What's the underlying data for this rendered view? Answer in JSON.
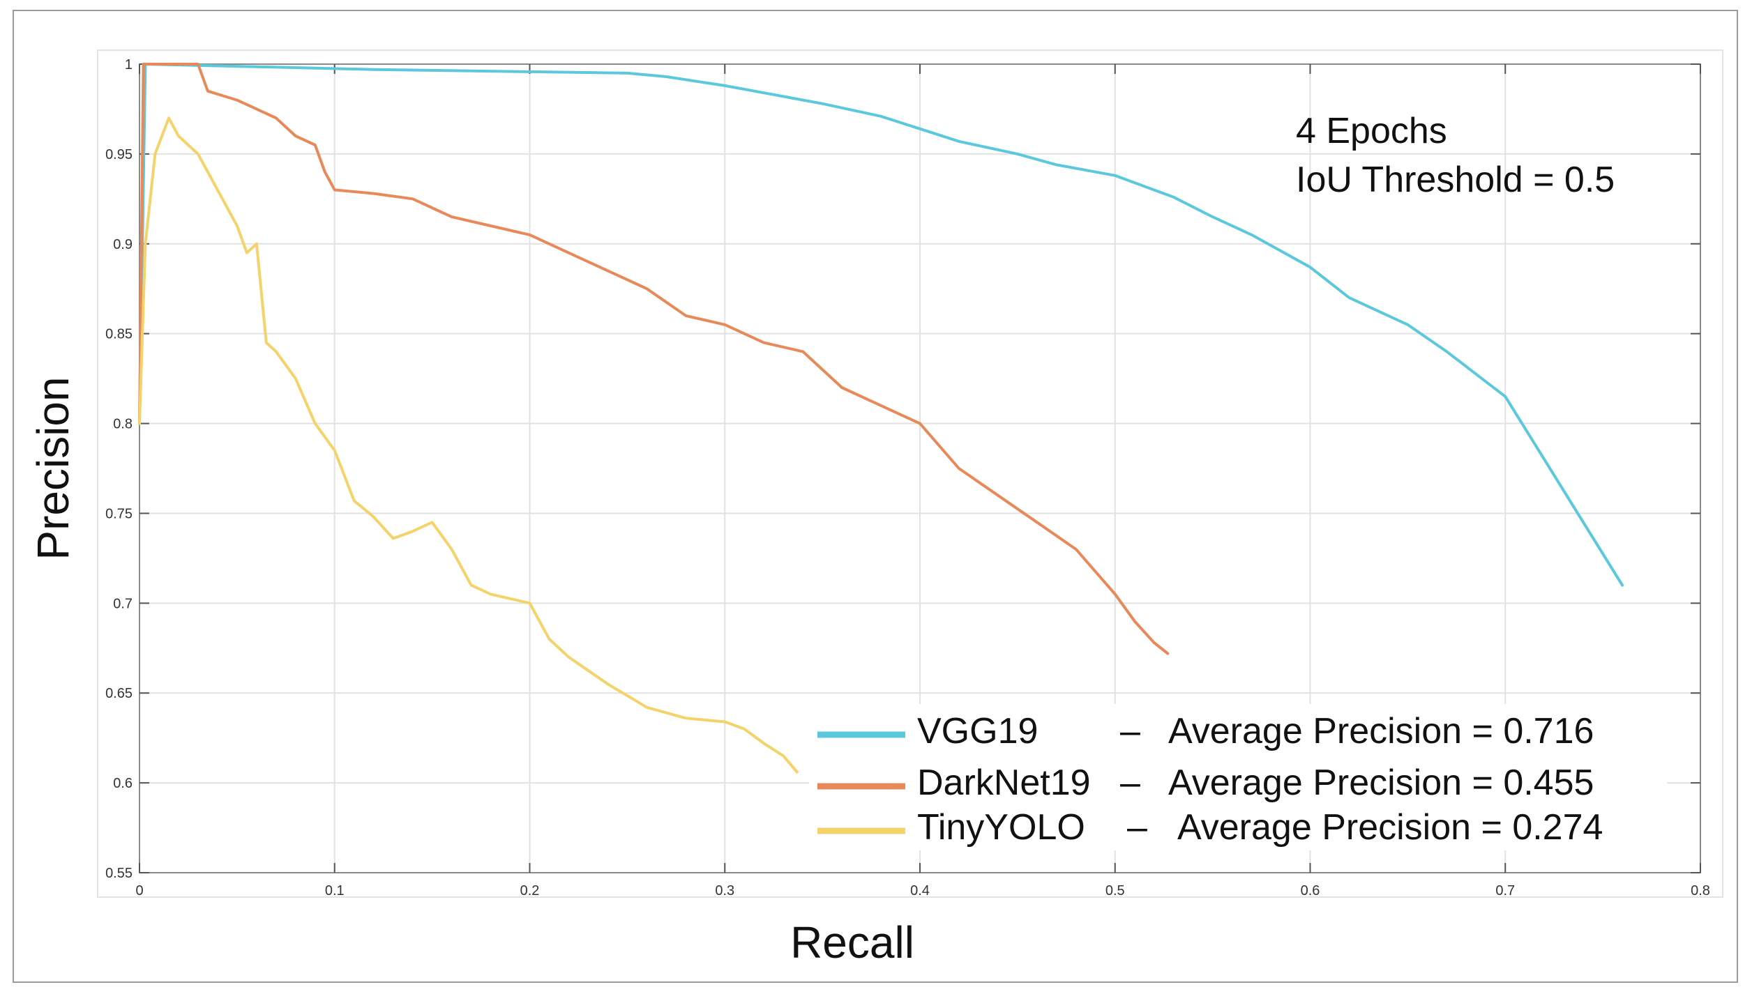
{
  "chart_data": {
    "type": "line",
    "title": "",
    "xlabel": "Recall",
    "ylabel": "Precision",
    "xlim": [
      0,
      0.8
    ],
    "ylim": [
      0.55,
      1
    ],
    "grid": true,
    "x_ticks": [
      "0",
      "0.1",
      "0.2",
      "0.3",
      "0.4",
      "0.5",
      "0.6",
      "0.7",
      "0.8"
    ],
    "y_ticks": [
      "0.55",
      "0.6",
      "0.65",
      "0.7",
      "0.75",
      "0.8",
      "0.85",
      "0.9",
      "0.95",
      "1"
    ],
    "annotations": [
      "4 Epochs",
      "IoU Threshold = 0.5"
    ],
    "legend_position": "bottom-right",
    "series": [
      {
        "name": "VGG19",
        "legend_label": "VGG19",
        "legend_detail": "Average Precision = 0.716",
        "color": "#5cc8dc",
        "x": [
          0,
          0.003,
          0.12,
          0.25,
          0.27,
          0.3,
          0.32,
          0.35,
          0.38,
          0.4,
          0.42,
          0.45,
          0.47,
          0.5,
          0.53,
          0.55,
          0.57,
          0.6,
          0.62,
          0.65,
          0.67,
          0.7,
          0.72,
          0.74,
          0.76
        ],
        "y": [
          0.8,
          1,
          0.997,
          0.995,
          0.993,
          0.988,
          0.984,
          0.978,
          0.971,
          0.964,
          0.957,
          0.95,
          0.944,
          0.938,
          0.926,
          0.915,
          0.905,
          0.887,
          0.87,
          0.855,
          0.84,
          0.815,
          0.78,
          0.745,
          0.71
        ]
      },
      {
        "name": "DarkNet19",
        "legend_label": "DarkNet19",
        "legend_detail": "Average Precision = 0.455",
        "color": "#e8895a",
        "x": [
          0,
          0.002,
          0.03,
          0.035,
          0.05,
          0.07,
          0.08,
          0.09,
          0.095,
          0.1,
          0.12,
          0.14,
          0.16,
          0.18,
          0.2,
          0.22,
          0.24,
          0.26,
          0.28,
          0.3,
          0.32,
          0.34,
          0.36,
          0.38,
          0.4,
          0.42,
          0.44,
          0.46,
          0.48,
          0.5,
          0.51,
          0.52,
          0.527
        ],
        "y": [
          0.8,
          1,
          1,
          0.985,
          0.98,
          0.97,
          0.96,
          0.955,
          0.94,
          0.93,
          0.928,
          0.925,
          0.915,
          0.91,
          0.905,
          0.895,
          0.885,
          0.875,
          0.86,
          0.855,
          0.845,
          0.84,
          0.82,
          0.81,
          0.8,
          0.775,
          0.76,
          0.745,
          0.73,
          0.705,
          0.69,
          0.678,
          0.672
        ]
      },
      {
        "name": "TinyYOLO",
        "legend_label": "TinyYOLO",
        "legend_detail": "Average Precision = 0.274",
        "color": "#f3d36a",
        "x": [
          0,
          0.003,
          0.008,
          0.015,
          0.02,
          0.03,
          0.04,
          0.05,
          0.055,
          0.06,
          0.065,
          0.07,
          0.08,
          0.09,
          0.1,
          0.11,
          0.12,
          0.13,
          0.14,
          0.15,
          0.16,
          0.17,
          0.18,
          0.2,
          0.21,
          0.22,
          0.24,
          0.26,
          0.28,
          0.3,
          0.31,
          0.32,
          0.33,
          0.337
        ],
        "y": [
          0.8,
          0.9,
          0.95,
          0.97,
          0.96,
          0.95,
          0.93,
          0.91,
          0.895,
          0.9,
          0.845,
          0.84,
          0.825,
          0.8,
          0.785,
          0.757,
          0.748,
          0.736,
          0.74,
          0.745,
          0.73,
          0.71,
          0.705,
          0.7,
          0.68,
          0.67,
          0.655,
          0.642,
          0.636,
          0.634,
          0.63,
          0.622,
          0.615,
          0.606
        ]
      }
    ]
  }
}
